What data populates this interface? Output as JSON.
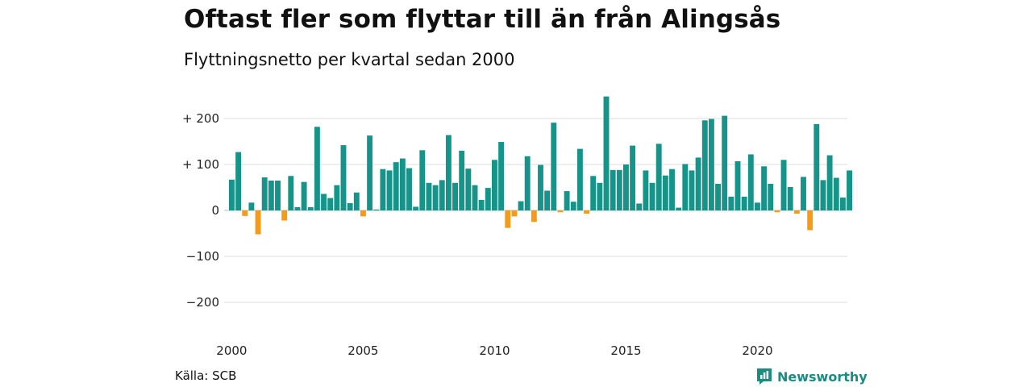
{
  "title": "Oftast fler som flyttar till än från Alingsås",
  "subtitle": "Flyttningsnetto per kvartal sedan 2000",
  "source": "Källa: SCB",
  "brand": {
    "name": "Newsworthy",
    "icon": "newsworthy-logo-icon",
    "color": "#1a8c80"
  },
  "colors": {
    "positive": "#16948a",
    "negative": "#f49b1b",
    "grid": "#dddddd"
  },
  "chart_data": {
    "type": "bar",
    "y_ticks": [
      {
        "value": 200,
        "label": "+ 200"
      },
      {
        "value": 100,
        "label": "+ 100"
      },
      {
        "value": 0,
        "label": "0"
      },
      {
        "value": -100,
        "label": "−100"
      },
      {
        "value": -200,
        "label": "−200"
      }
    ],
    "x_ticks": [
      "2000",
      "2005",
      "2010",
      "2015",
      "2020"
    ],
    "ylim": [
      -200,
      250
    ],
    "grid": true,
    "series": [
      {
        "start_year": 2000,
        "periods_per_year": 4,
        "values": [
          67,
          127,
          -12,
          17,
          -52,
          72,
          65,
          65,
          -22,
          75,
          7,
          62,
          7,
          182,
          36,
          27,
          55,
          142,
          16,
          39,
          -13,
          163,
          2,
          90,
          87,
          105,
          113,
          92,
          8,
          131,
          60,
          55,
          66,
          164,
          60,
          130,
          91,
          55,
          23,
          49,
          110,
          149,
          -38,
          -13,
          20,
          118,
          -25,
          99,
          43,
          191,
          -4,
          42,
          19,
          134,
          -7,
          75,
          60,
          248,
          88,
          88,
          100,
          141,
          15,
          87,
          60,
          145,
          76,
          90,
          6,
          101,
          87,
          115,
          196,
          199,
          58,
          206,
          30,
          107,
          30,
          122,
          17,
          96,
          58,
          -4,
          110,
          51,
          -7,
          73,
          -43,
          188,
          66,
          120,
          71,
          28,
          87
        ]
      }
    ]
  }
}
